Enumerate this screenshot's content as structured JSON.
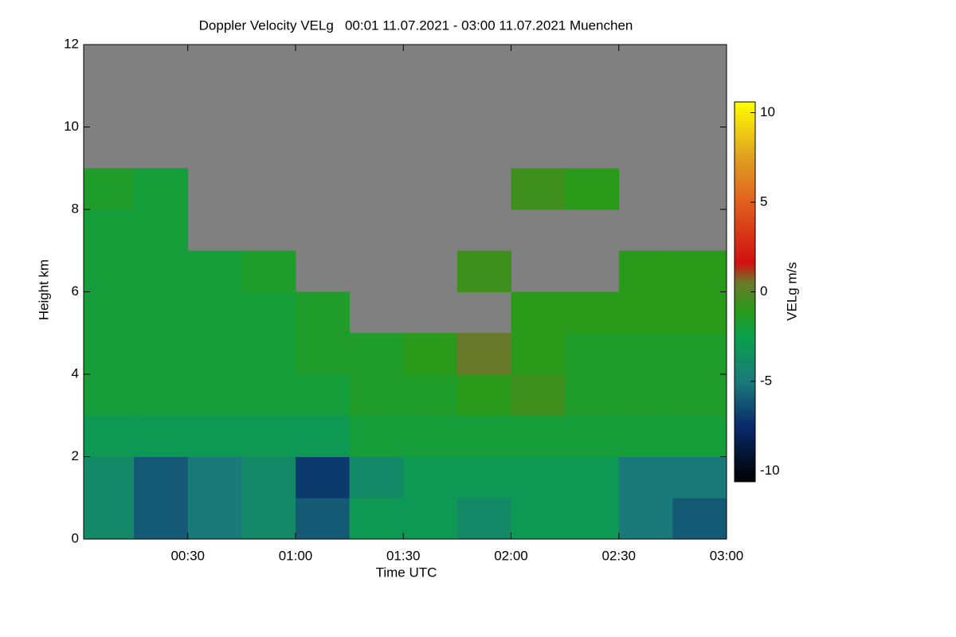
{
  "chart_data": {
    "type": "heatmap",
    "title": "Doppler Velocity VELg   00:01 11.07.2021 - 03:00 11.07.2021 Muenchen",
    "x_label": "Time UTC",
    "y_label": "Height km",
    "colorbar_label": "VELg m/s",
    "xlim": [
      1,
      180
    ],
    "xticks": [
      {
        "value": 30,
        "label": "00:30"
      },
      {
        "value": 60,
        "label": "01:00"
      },
      {
        "value": 90,
        "label": "01:30"
      },
      {
        "value": 120,
        "label": "02:00"
      },
      {
        "value": 150,
        "label": "02:30"
      },
      {
        "value": 180,
        "label": "03:00"
      }
    ],
    "ylim": [
      0,
      12
    ],
    "yticks": [
      0,
      2,
      4,
      6,
      8,
      10,
      12
    ],
    "clim": [
      -10.6,
      10.6
    ],
    "cticks": [
      -10,
      -5,
      0,
      5,
      10
    ],
    "no_data_color": "#808080",
    "colormap": [
      {
        "value": -10.6,
        "color": "#000000"
      },
      {
        "value": -7.5,
        "color": "#0a2a6a"
      },
      {
        "value": -5,
        "color": "#1a7a7a"
      },
      {
        "value": -2.5,
        "color": "#0aa04a"
      },
      {
        "value": -1,
        "color": "#2a9a1a"
      },
      {
        "value": 0.5,
        "color": "#6a7a2a"
      },
      {
        "value": 1.6,
        "color": "#d01010"
      },
      {
        "value": 5,
        "color": "#e06020"
      },
      {
        "value": 7.5,
        "color": "#e0a020"
      },
      {
        "value": 10.6,
        "color": "#ffff00"
      }
    ],
    "x_bins": [
      0,
      15,
      30,
      45,
      60,
      75,
      90,
      105,
      120,
      135,
      150,
      165,
      180
    ],
    "y_bins": [
      0,
      1,
      2,
      3,
      4,
      5,
      6,
      7,
      8,
      9,
      10,
      11,
      12
    ],
    "values": [
      [
        -4,
        -6,
        -5,
        -4,
        -6,
        -3,
        -3,
        -4,
        -3,
        -3,
        -5,
        -6
      ],
      [
        -4,
        -6,
        -5,
        -4,
        -7,
        -4,
        -3,
        -3,
        -3,
        -3,
        -5,
        -5
      ],
      [
        -3,
        -3,
        -3,
        -3,
        -3,
        -2,
        -2,
        -2,
        -2,
        -2,
        -2,
        -2
      ],
      [
        -2,
        -2,
        -2,
        -2,
        -2,
        -1.5,
        -1.5,
        -1,
        -0.5,
        -1.5,
        -1.5,
        -1.5
      ],
      [
        -2,
        -2,
        -2,
        -2,
        -1.5,
        -1.5,
        -1,
        0.5,
        -1,
        -1.5,
        -1.5,
        -1.5
      ],
      [
        -2,
        -2,
        -2,
        -2,
        -1.5,
        null,
        null,
        null,
        -1,
        -1,
        -1,
        -1
      ],
      [
        -2,
        -2,
        -2,
        -1.5,
        null,
        null,
        null,
        -0.5,
        null,
        null,
        -1,
        -1
      ],
      [
        -2,
        -2,
        null,
        null,
        null,
        null,
        null,
        null,
        null,
        null,
        null,
        null
      ],
      [
        -1.5,
        -2,
        null,
        null,
        null,
        null,
        null,
        null,
        -0.5,
        -1,
        null,
        null
      ],
      [
        null,
        null,
        null,
        null,
        null,
        null,
        null,
        null,
        null,
        null,
        null,
        null
      ],
      [
        null,
        null,
        null,
        null,
        null,
        null,
        null,
        null,
        null,
        null,
        null,
        null
      ],
      [
        null,
        null,
        null,
        null,
        null,
        null,
        null,
        null,
        null,
        null,
        null,
        null
      ]
    ]
  }
}
